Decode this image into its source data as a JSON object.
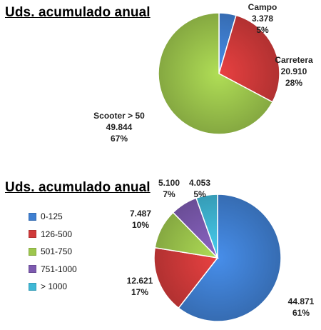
{
  "chart_data": [
    {
      "type": "pie",
      "title": "Uds. acumulado anual",
      "slices": [
        {
          "name": "Campo",
          "value": 3378,
          "value_label": "3.378",
          "percent_label": "5%",
          "color": "#3f7fd1"
        },
        {
          "name": "Carretera",
          "value": 20910,
          "value_label": "20.910",
          "percent_label": "28%",
          "color": "#d03a3a"
        },
        {
          "name": "Scooter > 50",
          "value": 49844,
          "value_label": "49.844",
          "percent_label": "67%",
          "color": "#9dc64d"
        }
      ],
      "legend": "none"
    },
    {
      "type": "pie",
      "title": "Uds. acumulado anual",
      "slices": [
        {
          "name": "0-125",
          "value": 44871,
          "value_label": "44.871",
          "percent_label": "61%",
          "color": "#3f7fd1"
        },
        {
          "name": "126-500",
          "value": 12621,
          "value_label": "12.621",
          "percent_label": "17%",
          "color": "#d03a3a"
        },
        {
          "name": "501-750",
          "value": 7487,
          "value_label": "7.487",
          "percent_label": "10%",
          "color": "#9dc64d"
        },
        {
          "name": "751-1000",
          "value": 5100,
          "value_label": "5.100",
          "percent_label": "7%",
          "color": "#7d5ab0"
        },
        {
          "name": "> 1000",
          "value": 4053,
          "value_label": "4.053",
          "percent_label": "5%",
          "color": "#3fb8d6"
        }
      ],
      "legend": "left"
    }
  ]
}
